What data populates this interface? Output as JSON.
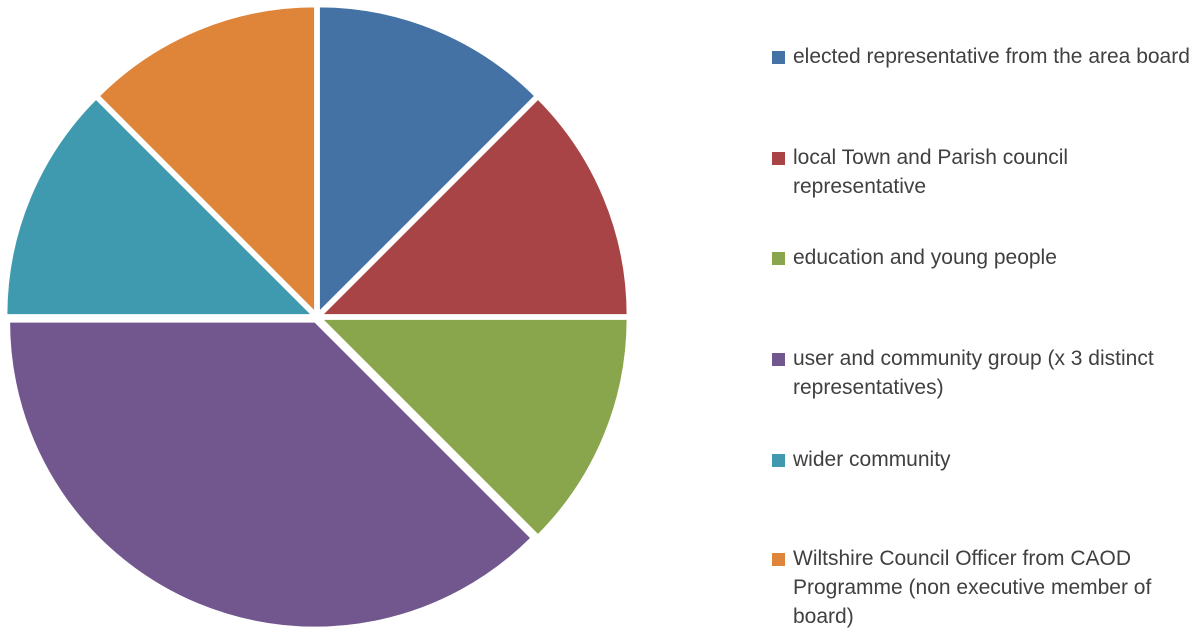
{
  "chart_data": {
    "type": "pie",
    "title": "",
    "legend_position": "right",
    "slices": [
      {
        "name": "elected representative from the area board",
        "value": 1,
        "color": "#4472a5"
      },
      {
        "name": "local Town and Parish council representative",
        "value": 1,
        "color": "#a84446"
      },
      {
        "name": "education and young people",
        "value": 1,
        "color": "#8aa64c"
      },
      {
        "name": "user and community group (x 3 distinct representatives)",
        "value": 3,
        "color": "#72578f"
      },
      {
        "name": "wider community",
        "value": 1,
        "color": "#3f9aaf"
      },
      {
        "name": "Wiltshire Council Officer from CAOD Programme (non executive member of board)",
        "value": 1,
        "color": "#df853a"
      }
    ]
  }
}
